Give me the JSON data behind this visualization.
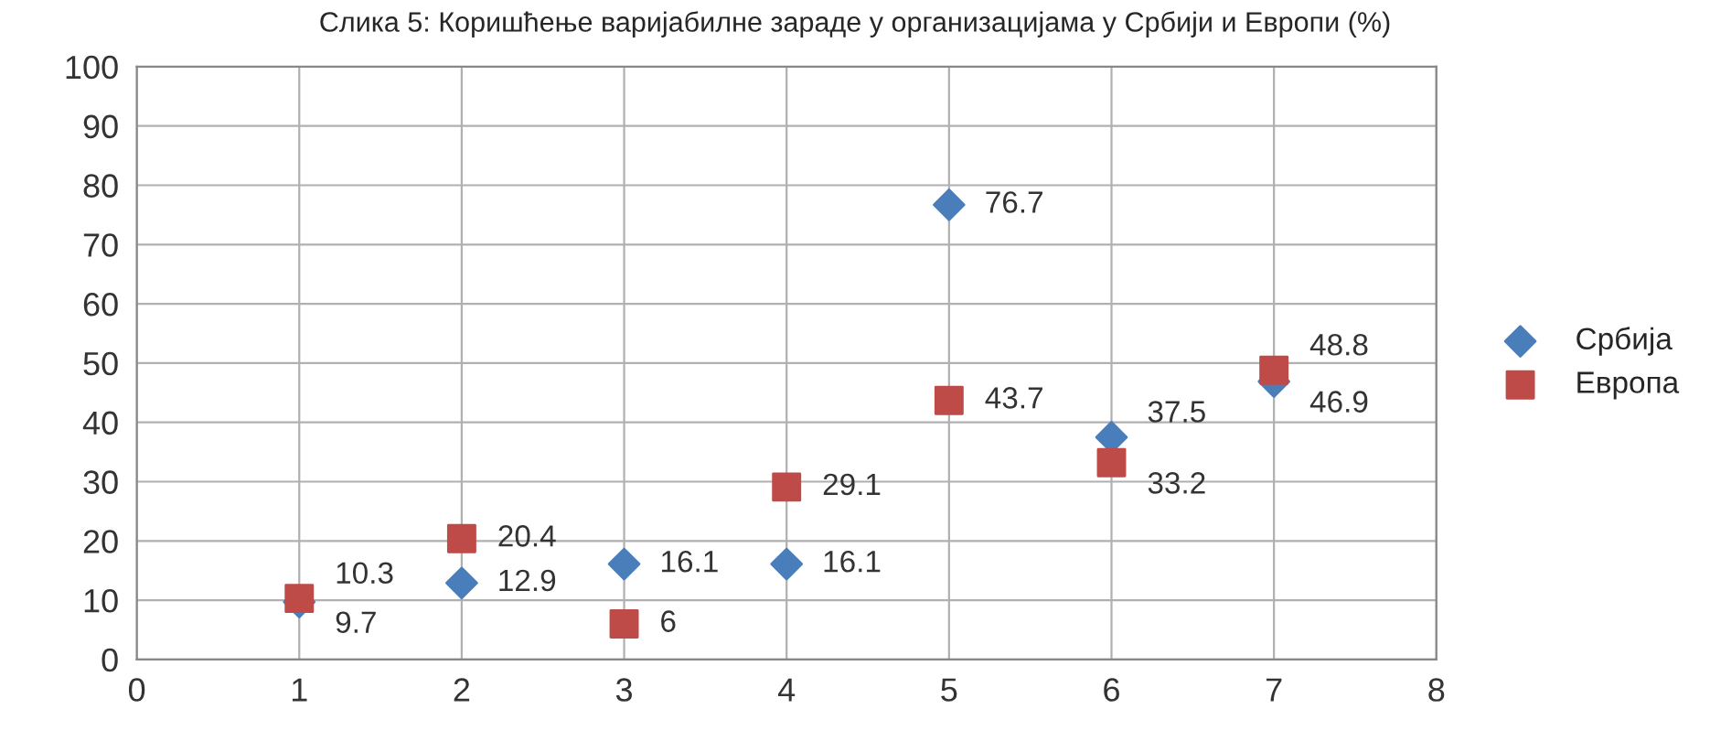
{
  "chart_data": {
    "type": "scatter",
    "title": "Слика 5: Коришћење варијабилне зараде у организацијама у Србији и Европи (%)",
    "x": [
      1,
      2,
      3,
      4,
      5,
      6,
      7
    ],
    "series": [
      {
        "name": "Србија",
        "color": "#4a7ebb",
        "marker": "diamond",
        "values": [
          9.7,
          12.9,
          16.1,
          16.1,
          76.7,
          37.5,
          46.9
        ]
      },
      {
        "name": "Европа",
        "color": "#be4b48",
        "marker": "square",
        "values": [
          10.3,
          20.4,
          6,
          29.1,
          43.7,
          33.2,
          48.8
        ]
      }
    ],
    "data_labels": true,
    "xlim": [
      0,
      8
    ],
    "xticks": [
      0,
      1,
      2,
      3,
      4,
      5,
      6,
      7,
      8
    ],
    "ylim": [
      0,
      100
    ],
    "yticks": [
      0,
      10,
      20,
      30,
      40,
      50,
      60,
      70,
      80,
      90,
      100
    ],
    "grid": true,
    "legend": "right"
  }
}
